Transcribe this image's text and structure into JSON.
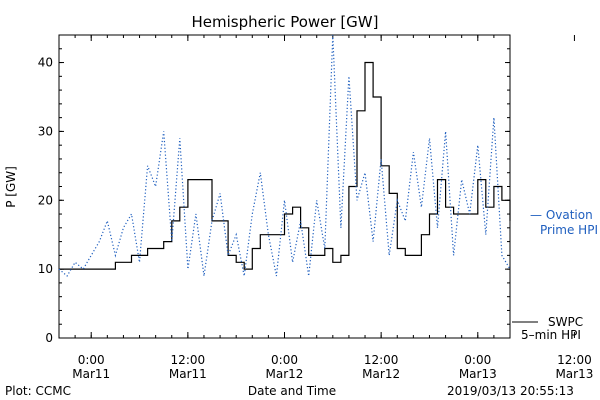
{
  "chart_data": {
    "type": "line",
    "title": "Hemispheric Power [GW]",
    "ylabel": "P [GW]",
    "xlabel": "Date and Time",
    "ylim": [
      0,
      44
    ],
    "yticks": [
      0,
      10,
      20,
      30,
      40
    ],
    "xticks": [
      {
        "time": "0:00",
        "date": "Mar11"
      },
      {
        "time": "12:00",
        "date": "Mar11"
      },
      {
        "time": "0:00",
        "date": "Mar12"
      },
      {
        "time": "12:00",
        "date": "Mar12"
      },
      {
        "time": "0:00",
        "date": "Mar13"
      },
      {
        "time": "12:00",
        "date": "Mar13"
      }
    ],
    "xlim_hours": [
      -4,
      52
    ],
    "grid": false,
    "series": [
      {
        "name": "SWPC 5-min HPI",
        "style": "solid",
        "color": "#000000",
        "x": [
          -4,
          -2,
          1,
          3,
          5,
          6,
          7,
          9,
          10,
          11,
          12,
          14,
          15,
          17,
          18,
          19,
          20,
          21,
          22,
          24,
          25,
          26,
          27,
          28,
          29,
          30,
          31,
          32,
          33,
          34,
          35,
          36,
          37,
          38,
          39,
          40,
          41,
          42,
          43,
          44,
          45,
          46,
          47,
          48,
          49,
          50,
          51,
          52
        ],
        "y": [
          10,
          10,
          10,
          11,
          12,
          12,
          13,
          14,
          17,
          19,
          23,
          23,
          17,
          12,
          11,
          10,
          13,
          15,
          15,
          18,
          19,
          16,
          12,
          12,
          13,
          11,
          12,
          22,
          33,
          40,
          35,
          25,
          21,
          13,
          12,
          12,
          15,
          18,
          23,
          19,
          18,
          18,
          18,
          23,
          19,
          22,
          20,
          17
        ]
      },
      {
        "name": "Ovation Prime HPI",
        "style": "dotted",
        "color": "#1f5fbf",
        "x": [
          -4,
          -3,
          -2,
          -1,
          0,
          1,
          2,
          3,
          4,
          5,
          6,
          7,
          8,
          9,
          10,
          11,
          12,
          13,
          14,
          15,
          16,
          17,
          18,
          19,
          20,
          21,
          22,
          23,
          24,
          25,
          26,
          27,
          28,
          29,
          30,
          31,
          32,
          33,
          34,
          35,
          36,
          37,
          38,
          39,
          40,
          41,
          42,
          43,
          44,
          45,
          46,
          47,
          48,
          49,
          50,
          51,
          52
        ],
        "y": [
          10,
          9,
          11,
          10,
          12,
          14,
          17,
          12,
          16,
          18,
          11,
          25,
          22,
          30,
          14,
          29,
          10,
          18,
          9,
          17,
          21,
          12,
          15,
          9,
          18,
          24,
          15,
          9,
          20,
          11,
          17,
          9,
          20,
          13,
          44,
          16,
          38,
          20,
          24,
          14,
          26,
          12,
          20,
          17,
          27,
          19,
          29,
          16,
          30,
          12,
          23,
          18,
          28,
          15,
          32,
          12,
          10
        ]
      }
    ],
    "legend": [
      {
        "line1": "— Ovation",
        "line2": "Prime HPI",
        "color": "#1f5fbf"
      },
      {
        "line1": "SWPC",
        "line2": "5–min HPI",
        "color": "#000000"
      }
    ],
    "footer_left": "Plot: CCMC",
    "footer_right": "2019/03/13 20:55:13"
  }
}
